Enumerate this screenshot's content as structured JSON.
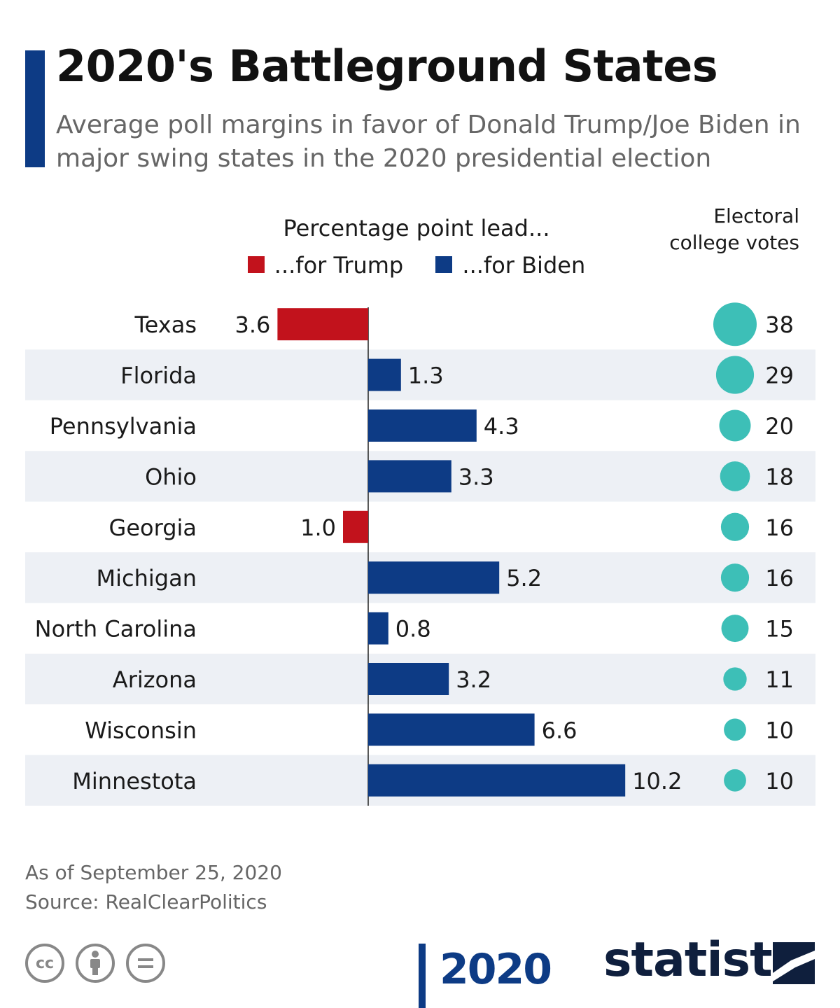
{
  "header": {
    "title": "2020's Battleground States",
    "subtitle": "Average poll margins in favor of Donald Trump/Joe Biden in major swing states in the 2020 presidential election"
  },
  "legend": {
    "axis_title": "Percentage point lead...",
    "trump_label": "...for Trump",
    "biden_label": "...for Biden"
  },
  "electoral_header": "Electoral college votes",
  "colors": {
    "trump": "#c2121c",
    "biden": "#0d3b85",
    "circle": "#3dbfb7",
    "stripe": "#edf0f5",
    "accent": "#0d3b85"
  },
  "chart_data": {
    "type": "bar",
    "orientation": "horizontal",
    "categories": [
      "Texas",
      "Florida",
      "Pennsylvania",
      "Ohio",
      "Georgia",
      "Michigan",
      "North Carolina",
      "Arizona",
      "Wisconsin",
      "Minnestota"
    ],
    "series": [
      {
        "name": "...for Trump",
        "values": [
          3.6,
          null,
          null,
          null,
          1.0,
          null,
          null,
          null,
          null,
          null
        ]
      },
      {
        "name": "...for Biden",
        "values": [
          null,
          1.3,
          4.3,
          3.3,
          null,
          5.2,
          0.8,
          3.2,
          6.6,
          10.2
        ]
      }
    ],
    "value_labels": [
      "3.6",
      "1.3",
      "4.3",
      "3.3",
      "1.0",
      "5.2",
      "0.8",
      "3.2",
      "6.6",
      "10.2"
    ],
    "electoral_votes": [
      38,
      29,
      20,
      18,
      16,
      16,
      15,
      11,
      10,
      10
    ],
    "xlabel": "Percentage point lead...",
    "legend_placement": "top",
    "grid": false
  },
  "footer": {
    "date": "As of September 25, 2020",
    "source": "Source: RealClearPolitics",
    "brand_year": "2020",
    "brand": "statista"
  }
}
